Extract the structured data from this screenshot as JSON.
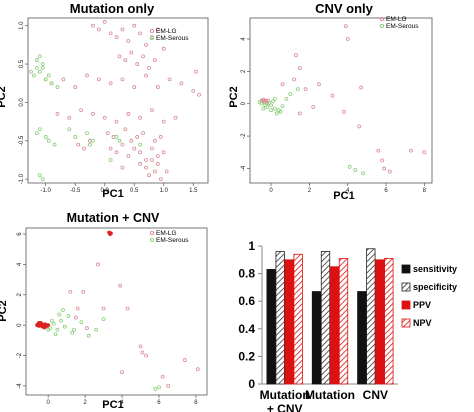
{
  "chart_data": [
    {
      "type": "scatter",
      "title": "Mutation only",
      "xlabel": "PC1",
      "ylabel": "PC2",
      "xlim": [
        -1.3,
        1.75
      ],
      "ylim": [
        -1.05,
        1.1
      ],
      "xticks": [
        -1.0,
        -0.5,
        0.0,
        0.5,
        1.0,
        1.5
      ],
      "yticks": [
        -1.0,
        -0.5,
        0.0,
        0.5,
        1.0
      ],
      "xtick_labels": [
        "-1.0",
        "-0.5",
        "0.0",
        "0.5",
        "1.0",
        "1.5"
      ],
      "ytick_labels": [
        "-1.0",
        "-0.5",
        "0.0",
        "0.5",
        "1.0"
      ],
      "legend": [
        "EM-LG",
        "EM-Serous"
      ],
      "legend_position": "top-right",
      "series": [
        {
          "name": "EM-LG",
          "color": "#d98a96",
          "filled": false,
          "x": [
            -0.2,
            -0.1,
            0.0,
            0.1,
            0.2,
            0.3,
            0.4,
            0.5,
            0.6,
            0.7,
            0.8,
            0.9,
            1.0,
            0.25,
            0.35,
            0.45,
            0.55,
            0.65,
            0.75,
            0.85,
            -0.9,
            -0.7,
            -0.5,
            -0.3,
            -0.1,
            0.1,
            0.3,
            0.5,
            0.7,
            0.9,
            1.1,
            1.3,
            1.5,
            -0.8,
            -0.6,
            -0.4,
            -0.2,
            0.0,
            0.2,
            0.4,
            0.6,
            0.8,
            1.0,
            1.2,
            0.05,
            0.15,
            0.35,
            0.45,
            0.55,
            0.65,
            0.85,
            0.95,
            0.1,
            0.2,
            0.3,
            0.4,
            0.5,
            0.6,
            0.7,
            0.8,
            0.9,
            1.0,
            0.6,
            0.7,
            0.8,
            0.9,
            0.75,
            0.85,
            0.95,
            1.05,
            -0.45,
            -0.35,
            -0.25,
            0.3,
            1.6,
            1.55
          ],
          "y": [
            1.0,
            0.95,
            1.05,
            0.9,
            0.85,
            0.95,
            0.8,
            1.0,
            0.9,
            0.75,
            0.85,
            0.95,
            0.7,
            0.6,
            0.55,
            0.65,
            0.5,
            0.6,
            0.45,
            0.55,
            0.25,
            0.3,
            0.2,
            0.35,
            0.3,
            0.25,
            0.3,
            0.2,
            0.35,
            0.2,
            0.3,
            0.25,
            0.15,
            -0.15,
            -0.2,
            -0.1,
            -0.15,
            -0.2,
            -0.25,
            -0.15,
            -0.2,
            -0.1,
            -0.25,
            -0.2,
            -0.4,
            -0.45,
            -0.35,
            -0.5,
            -0.45,
            -0.4,
            -0.5,
            -0.45,
            -0.6,
            -0.65,
            -0.55,
            -0.7,
            -0.6,
            -0.65,
            -0.75,
            -0.6,
            -0.7,
            -0.65,
            -0.8,
            -0.85,
            -0.75,
            -0.8,
            -0.95,
            -0.9,
            -1.0,
            -0.9,
            -0.55,
            -0.6,
            -0.5,
            -0.85,
            0.1,
            0.4
          ]
        },
        {
          "name": "EM-Serous",
          "color": "#88cc77",
          "filled": false,
          "x": [
            -1.15,
            -1.1,
            -1.05,
            -1.2,
            -1.0,
            -1.15,
            -1.1,
            -1.25,
            -1.05,
            -0.95,
            -1.0,
            -0.9,
            -0.8,
            -1.1,
            -1.15,
            -1.0,
            -0.95,
            -0.85,
            -0.6,
            -0.5,
            -0.3,
            -0.2,
            -0.25,
            0.2,
            0.25,
            0.1,
            0.6,
            -1.1,
            -1.05
          ],
          "y": [
            0.45,
            0.4,
            0.5,
            0.35,
            0.3,
            0.55,
            0.6,
            0.4,
            0.45,
            0.35,
            0.3,
            0.25,
            0.2,
            -0.35,
            -0.4,
            -0.45,
            -0.5,
            -0.55,
            -0.35,
            -0.45,
            -0.4,
            -0.5,
            -0.55,
            -0.45,
            -0.5,
            -0.75,
            -0.55,
            -0.95,
            -1.0
          ]
        }
      ]
    },
    {
      "type": "scatter",
      "title": "CNV only",
      "xlabel": "PC1",
      "ylabel": "PC2",
      "xlim": [
        -1.1,
        8.4
      ],
      "ylim": [
        -4.9,
        5.3
      ],
      "xticks": [
        0,
        2,
        4,
        6,
        8
      ],
      "yticks": [
        -4,
        -2,
        0,
        2,
        4
      ],
      "xtick_labels": [
        "0",
        "2",
        "4",
        "6",
        "8"
      ],
      "ytick_labels": [
        "-4",
        "-2",
        "0",
        "2",
        "4"
      ],
      "legend": [
        "EM-LG",
        "EM-Serous"
      ],
      "legend_position": "top-right",
      "series": [
        {
          "name": "EM-LG",
          "color": "#d98a96",
          "filled": false,
          "x": [
            -0.5,
            -0.45,
            -0.4,
            -0.35,
            -0.3,
            -0.25,
            -0.2,
            -0.15,
            1.3,
            1.5,
            1.2,
            0.6,
            2.5,
            1.8,
            3.9,
            4.0,
            4.7,
            4.6,
            3.8,
            5.6,
            5.8,
            5.9,
            6.2,
            7.3,
            8.0,
            1.5,
            2.2,
            3.2
          ],
          "y": [
            0.2,
            0.15,
            0.25,
            0.1,
            0.2,
            0.15,
            0.05,
            0.2,
            3.0,
            2.2,
            1.5,
            1.2,
            1.2,
            0.9,
            4.8,
            4.0,
            1.0,
            -1.4,
            -0.5,
            -2.9,
            -3.5,
            -4.0,
            -4.2,
            -2.9,
            -3.0,
            -0.6,
            -0.2,
            0.5
          ]
        },
        {
          "name": "EM-Serous",
          "color": "#88cc77",
          "filled": false,
          "x": [
            -0.6,
            -0.5,
            -0.3,
            -0.2,
            -0.1,
            0.0,
            0.1,
            0.2,
            0.4,
            0.6,
            0.8,
            1.0,
            1.4,
            0.3,
            0.5,
            4.1,
            4.4,
            4.8,
            -0.4,
            0.0,
            0.2
          ],
          "y": [
            0.1,
            0.0,
            -0.1,
            -0.2,
            0.05,
            -0.1,
            0.15,
            -0.3,
            -0.4,
            -0.15,
            0.3,
            0.6,
            0.9,
            -0.6,
            -0.5,
            -3.9,
            -4.1,
            -4.3,
            -0.3,
            -0.4,
            0.3
          ]
        }
      ]
    },
    {
      "type": "scatter",
      "title": "Mutation + CNV",
      "xlabel": "PC1",
      "ylabel": "PC2",
      "xlim": [
        -1.2,
        8.6
      ],
      "ylim": [
        -4.6,
        6.4
      ],
      "xticks": [
        0,
        2,
        4,
        6,
        8
      ],
      "yticks": [
        -4,
        -2,
        0,
        2,
        4,
        6
      ],
      "xtick_labels": [
        "0",
        "2",
        "4",
        "6",
        "8"
      ],
      "ytick_labels": [
        "-4",
        "-2",
        "0",
        "2",
        "4",
        "6"
      ],
      "legend": [
        "EM-LG",
        "EM-Serous"
      ],
      "legend_position": "top-right",
      "series": [
        {
          "name": "EM-LG",
          "color": "#dd2222",
          "filled": true,
          "x": [
            -0.6,
            -0.55,
            -0.5,
            -0.45,
            -0.4,
            -0.35,
            -0.3,
            -0.25,
            -0.2,
            -0.15,
            -0.1,
            -0.05,
            0.0,
            -0.5,
            -0.4,
            -0.3,
            -0.2,
            3.3,
            3.4,
            3.35
          ],
          "y": [
            0.0,
            0.05,
            -0.05,
            0.1,
            0.0,
            -0.05,
            0.05,
            0.0,
            -0.1,
            0.05,
            0.0,
            -0.05,
            0.0,
            0.15,
            0.15,
            -0.1,
            -0.15,
            6.1,
            6.05,
            6.0
          ]
        },
        {
          "name": "EM-LG",
          "color": "#d98a96",
          "filled": false,
          "x": [
            1.2,
            1.6,
            1.9,
            2.7,
            3.0,
            3.9,
            4.3,
            5.0,
            5.1,
            5.3,
            6.2,
            6.5,
            7.4,
            8.1,
            4.0,
            2.1,
            1.5
          ],
          "y": [
            2.2,
            1.1,
            2.2,
            4.0,
            1.1,
            2.6,
            1.1,
            -1.4,
            -1.8,
            -2.0,
            -3.4,
            -4.0,
            -2.3,
            -2.9,
            -3.1,
            -0.2,
            0.5
          ]
        },
        {
          "name": "EM-Serous",
          "color": "#88cc77",
          "filled": false,
          "x": [
            0.1,
            0.3,
            0.5,
            0.7,
            0.9,
            1.1,
            1.3,
            0.4,
            0.6,
            0.8,
            1.4,
            1.8,
            2.2,
            2.6,
            3.0,
            0.2,
            0.0,
            5.8,
            6.0
          ],
          "y": [
            -0.2,
            0.1,
            -0.3,
            0.3,
            -0.1,
            0.6,
            -0.5,
            -0.6,
            0.7,
            1.0,
            -0.3,
            0.2,
            -0.7,
            -0.3,
            0.4,
            0.3,
            -0.3,
            -4.2,
            -4.1
          ]
        }
      ]
    },
    {
      "type": "bar",
      "categories": [
        "Mutation + CNV",
        "Mutation",
        "CNV"
      ],
      "category_lines": [
        [
          "Mutation",
          "+ CNV"
        ],
        [
          "Mutation"
        ],
        [
          "CNV"
        ]
      ],
      "ylim": [
        0,
        1
      ],
      "yticks": [
        0,
        0.2,
        0.4,
        0.6,
        0.8,
        1
      ],
      "ytick_labels": [
        "0",
        "0.2",
        "0.4",
        "0.6",
        "0.8",
        "1"
      ],
      "legend_position": "right",
      "series": [
        {
          "name": "sensitivity",
          "style": "solid-black",
          "values": [
            0.83,
            0.67,
            0.67
          ]
        },
        {
          "name": "specificity",
          "style": "hatched-black",
          "values": [
            0.96,
            0.96,
            0.98
          ]
        },
        {
          "name": "PPV",
          "style": "solid-red",
          "values": [
            0.9,
            0.85,
            0.9
          ]
        },
        {
          "name": "NPV",
          "style": "hatched-red",
          "values": [
            0.94,
            0.91,
            0.91
          ]
        }
      ]
    }
  ]
}
